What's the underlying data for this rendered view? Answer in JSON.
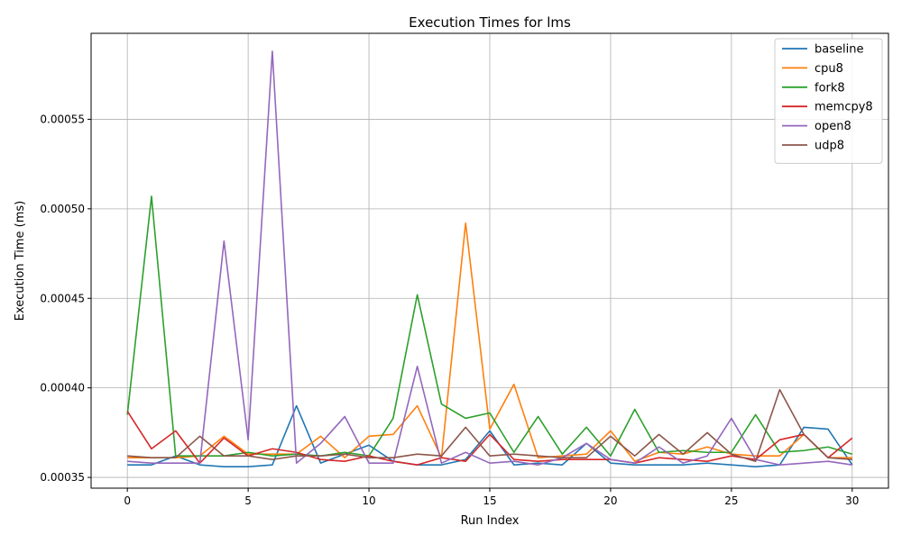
{
  "chart_data": {
    "type": "line",
    "title": "Execution Times for lms",
    "xlabel": "Run Index",
    "ylabel": "Execution Time (ms)",
    "xlim": [
      -1.5,
      31.5
    ],
    "ylim": [
      0.000344,
      0.000598
    ],
    "x_ticks": [
      0,
      5,
      10,
      15,
      20,
      25,
      30
    ],
    "x_tick_labels": [
      "0",
      "5",
      "10",
      "15",
      "20",
      "25",
      "30"
    ],
    "y_ticks": [
      0.00035,
      0.0004,
      0.00045,
      0.0005,
      0.00055
    ],
    "y_tick_labels": [
      "0.00035",
      "0.00040",
      "0.00045",
      "0.00050",
      "0.00055"
    ],
    "grid": true,
    "legend_position": "top-right",
    "x": [
      0,
      1,
      2,
      3,
      4,
      5,
      6,
      7,
      8,
      9,
      10,
      11,
      12,
      13,
      14,
      15,
      16,
      17,
      18,
      19,
      20,
      21,
      22,
      23,
      24,
      25,
      26,
      27,
      28,
      29,
      30
    ],
    "series": [
      {
        "name": "baseline",
        "color": "#1f77b4",
        "values": [
          0.000357,
          0.000357,
          0.000362,
          0.000357,
          0.000356,
          0.000356,
          0.000357,
          0.00039,
          0.000358,
          0.000363,
          0.000368,
          0.000359,
          0.000357,
          0.000357,
          0.00036,
          0.000376,
          0.000357,
          0.000358,
          0.000357,
          0.000369,
          0.000358,
          0.000357,
          0.000357,
          0.000357,
          0.000358,
          0.000357,
          0.000356,
          0.000357,
          0.000378,
          0.000377,
          0.000357
        ]
      },
      {
        "name": "cpu8",
        "color": "#ff7f0e",
        "values": [
          0.000361,
          0.000361,
          0.000361,
          0.000362,
          0.000373,
          0.000363,
          0.000363,
          0.000363,
          0.000373,
          0.000361,
          0.000373,
          0.000374,
          0.00039,
          0.000361,
          0.000492,
          0.000377,
          0.000402,
          0.000361,
          0.000362,
          0.000363,
          0.000376,
          0.000359,
          0.000364,
          0.000363,
          0.000367,
          0.000363,
          0.000362,
          0.000362,
          0.000374,
          0.000361,
          0.000361
        ]
      },
      {
        "name": "fork8",
        "color": "#2ca02c",
        "values": [
          0.000385,
          0.000507,
          0.000362,
          0.000362,
          0.000362,
          0.000364,
          0.000362,
          0.000363,
          0.000362,
          0.000364,
          0.000362,
          0.000383,
          0.000452,
          0.000391,
          0.000383,
          0.000386,
          0.000364,
          0.000384,
          0.000363,
          0.000378,
          0.000362,
          0.000388,
          0.000364,
          0.000365,
          0.000364,
          0.000364,
          0.000385,
          0.000364,
          0.000365,
          0.000367,
          0.000363
        ]
      },
      {
        "name": "memcpy8",
        "color": "#d62728",
        "values": [
          0.000387,
          0.000366,
          0.000376,
          0.000358,
          0.000372,
          0.000362,
          0.000366,
          0.000364,
          0.00036,
          0.000359,
          0.000362,
          0.000359,
          0.000357,
          0.000361,
          0.000359,
          0.000374,
          0.00036,
          0.000359,
          0.00036,
          0.00036,
          0.00036,
          0.000358,
          0.000361,
          0.00036,
          0.000359,
          0.000362,
          0.00036,
          0.000371,
          0.000374,
          0.000361,
          0.000372
        ]
      },
      {
        "name": "open8",
        "color": "#9467bd",
        "values": [
          0.000359,
          0.000358,
          0.000358,
          0.000358,
          0.000482,
          0.000371,
          0.000588,
          0.000358,
          0.000369,
          0.000384,
          0.000358,
          0.000358,
          0.000412,
          0.000358,
          0.000364,
          0.000358,
          0.000359,
          0.000357,
          0.000361,
          0.000369,
          0.00036,
          0.000358,
          0.000367,
          0.000358,
          0.000362,
          0.000383,
          0.00036,
          0.000357,
          0.000358,
          0.000359,
          0.000357
        ]
      },
      {
        "name": "udp8",
        "color": "#8c564b",
        "values": [
          0.000362,
          0.000361,
          0.000361,
          0.000373,
          0.000362,
          0.000362,
          0.00036,
          0.000362,
          0.000362,
          0.000363,
          0.000361,
          0.000361,
          0.000363,
          0.000362,
          0.000378,
          0.000362,
          0.000363,
          0.000362,
          0.000361,
          0.000361,
          0.000373,
          0.000362,
          0.000374,
          0.000363,
          0.000375,
          0.000363,
          0.000359,
          0.000399,
          0.000374,
          0.000361,
          0.00036
        ]
      }
    ]
  }
}
